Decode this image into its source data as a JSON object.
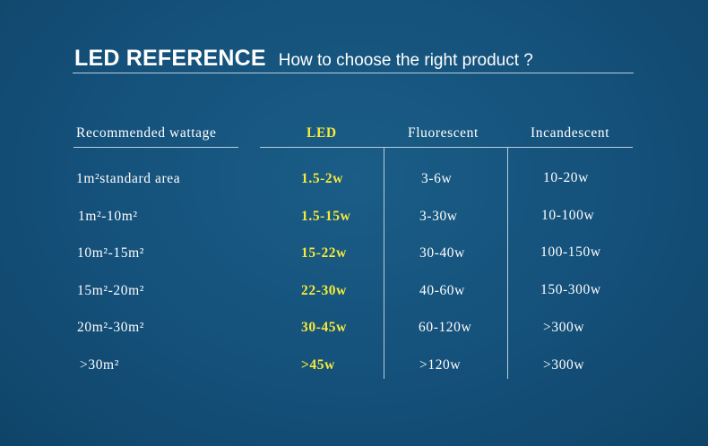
{
  "heading": {
    "title": "LED REFERENCE",
    "subtitle": "How to choose the right product ?"
  },
  "colors": {
    "background": "#15547a",
    "led_highlight": "#f7ea3a",
    "rules": "#b9cede"
  },
  "table": {
    "headers": {
      "area": "Recommended wattage",
      "led": "LED",
      "fluorescent": "Fluorescent",
      "incandescent": "Incandescent"
    },
    "rows": [
      {
        "area": "1m²standard area",
        "led": "1.5-2w",
        "fluorescent": "3-6w",
        "incandescent": "10-20w"
      },
      {
        "area": "1m²-10m²",
        "led": "1.5-15w",
        "fluorescent": "3-30w",
        "incandescent": "10-100w"
      },
      {
        "area": "10m²-15m²",
        "led": "15-22w",
        "fluorescent": "30-40w",
        "incandescent": "100-150w"
      },
      {
        "area": "15m²-20m²",
        "led": "22-30w",
        "fluorescent": "40-60w",
        "incandescent": "150-300w"
      },
      {
        "area": "20m²-30m²",
        "led": "30-45w",
        "fluorescent": "60-120w",
        "incandescent": ">300w"
      },
      {
        "area": ">30m²",
        "led": ">45w",
        "fluorescent": ">120w",
        "incandescent": ">300w"
      }
    ]
  }
}
